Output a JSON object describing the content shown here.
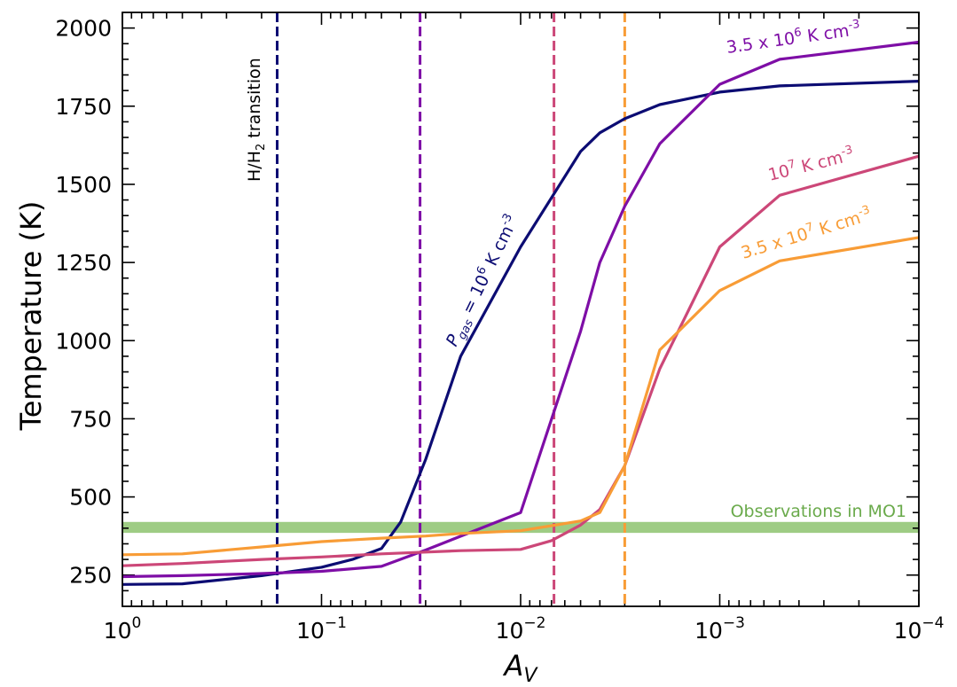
{
  "chart_data": {
    "type": "line",
    "xlabel": "A",
    "xlabel_sub": "V",
    "ylabel": "Temperature (K)",
    "x_scale": "log",
    "x_reversed": true,
    "xlim": [
      1,
      0.0001
    ],
    "ylim": [
      150,
      2050
    ],
    "yticks": [
      250,
      500,
      750,
      1000,
      1250,
      1500,
      1750,
      2000
    ],
    "xticks": [
      {
        "value": 1,
        "base": "10",
        "exp": "0"
      },
      {
        "value": 0.1,
        "base": "10",
        "exp": "−1"
      },
      {
        "value": 0.01,
        "base": "10",
        "exp": "−2"
      },
      {
        "value": 0.001,
        "base": "10",
        "exp": "−3"
      },
      {
        "value": 0.0001,
        "base": "10",
        "exp": "−4"
      }
    ],
    "series": [
      {
        "name": "Pgas = 10^6 K cm^-3",
        "color": "#0c0c73",
        "points": [
          [
            1,
            220
          ],
          [
            0.5,
            222
          ],
          [
            0.2,
            248
          ],
          [
            0.1,
            275
          ],
          [
            0.07,
            300
          ],
          [
            0.05,
            335
          ],
          [
            0.04,
            420
          ],
          [
            0.03,
            620
          ],
          [
            0.02,
            950
          ],
          [
            0.01,
            1300
          ],
          [
            0.005,
            1605
          ],
          [
            0.004,
            1665
          ],
          [
            0.003,
            1710
          ],
          [
            0.002,
            1755
          ],
          [
            0.001,
            1795
          ],
          [
            0.0005,
            1815
          ],
          [
            0.0001,
            1830
          ]
        ]
      },
      {
        "name": "3.5 x 10^6 K cm^-3",
        "color": "#7e0ea6",
        "points": [
          [
            1,
            245
          ],
          [
            0.5,
            248
          ],
          [
            0.2,
            255
          ],
          [
            0.1,
            262
          ],
          [
            0.05,
            278
          ],
          [
            0.03,
            330
          ],
          [
            0.01,
            450
          ],
          [
            0.005,
            1030
          ],
          [
            0.004,
            1250
          ],
          [
            0.003,
            1430
          ],
          [
            0.002,
            1630
          ],
          [
            0.001,
            1820
          ],
          [
            0.0005,
            1900
          ],
          [
            0.0001,
            1955
          ]
        ]
      },
      {
        "name": "10^7 K cm^-3",
        "color": "#cc4778",
        "points": [
          [
            1,
            280
          ],
          [
            0.5,
            287
          ],
          [
            0.2,
            300
          ],
          [
            0.1,
            308
          ],
          [
            0.05,
            318
          ],
          [
            0.02,
            328
          ],
          [
            0.01,
            332
          ],
          [
            0.007,
            360
          ],
          [
            0.005,
            410
          ],
          [
            0.004,
            460
          ],
          [
            0.003,
            600
          ],
          [
            0.002,
            910
          ],
          [
            0.001,
            1300
          ],
          [
            0.0005,
            1465
          ],
          [
            0.0001,
            1590
          ]
        ]
      },
      {
        "name": "3.5 x 10^7 K cm^-3",
        "color": "#f89c36",
        "points": [
          [
            1,
            315
          ],
          [
            0.5,
            318
          ],
          [
            0.2,
            340
          ],
          [
            0.1,
            357
          ],
          [
            0.05,
            368
          ],
          [
            0.03,
            375
          ],
          [
            0.02,
            383
          ],
          [
            0.01,
            392
          ],
          [
            0.005,
            423
          ],
          [
            0.004,
            450
          ],
          [
            0.003,
            600
          ],
          [
            0.002,
            970
          ],
          [
            0.001,
            1160
          ],
          [
            0.0005,
            1255
          ],
          [
            0.0001,
            1330
          ]
        ]
      }
    ],
    "vlines": [
      {
        "x": 0.167,
        "color": "#0c0c73",
        "label": "H/H2 transition"
      },
      {
        "x": 0.032,
        "color": "#7e0ea6"
      },
      {
        "x": 0.0068,
        "color": "#cc4778"
      },
      {
        "x": 0.003,
        "color": "#f89c36"
      }
    ],
    "band": {
      "y_low": 385,
      "y_high": 420,
      "color": "#9ecc84",
      "label": "Observations in MO1",
      "label_color": "#6aaa4b"
    },
    "annotations": {
      "h2": {
        "text_pre": "H/H",
        "text_sub": "2",
        "text_post": " transition",
        "color": "#000000"
      },
      "pgas": {
        "p": "P",
        "p_sub": "gas",
        "text": " = 10",
        "exp": "6",
        "unit": " K cm",
        "unit_exp": "-3",
        "color": "#0c0c73"
      },
      "s35e6": {
        "text": "3.5 x 10",
        "exp": "6",
        "unit": " K cm",
        "unit_exp": "-3",
        "color": "#7e0ea6"
      },
      "s1e7": {
        "text": "10",
        "exp": "7",
        "unit": " K cm",
        "unit_exp": "-3",
        "color": "#cc4778"
      },
      "s35e7": {
        "text": "3.5 x 10",
        "exp": "7",
        "unit": " K cm",
        "unit_exp": "-3",
        "color": "#f89c36"
      }
    }
  }
}
